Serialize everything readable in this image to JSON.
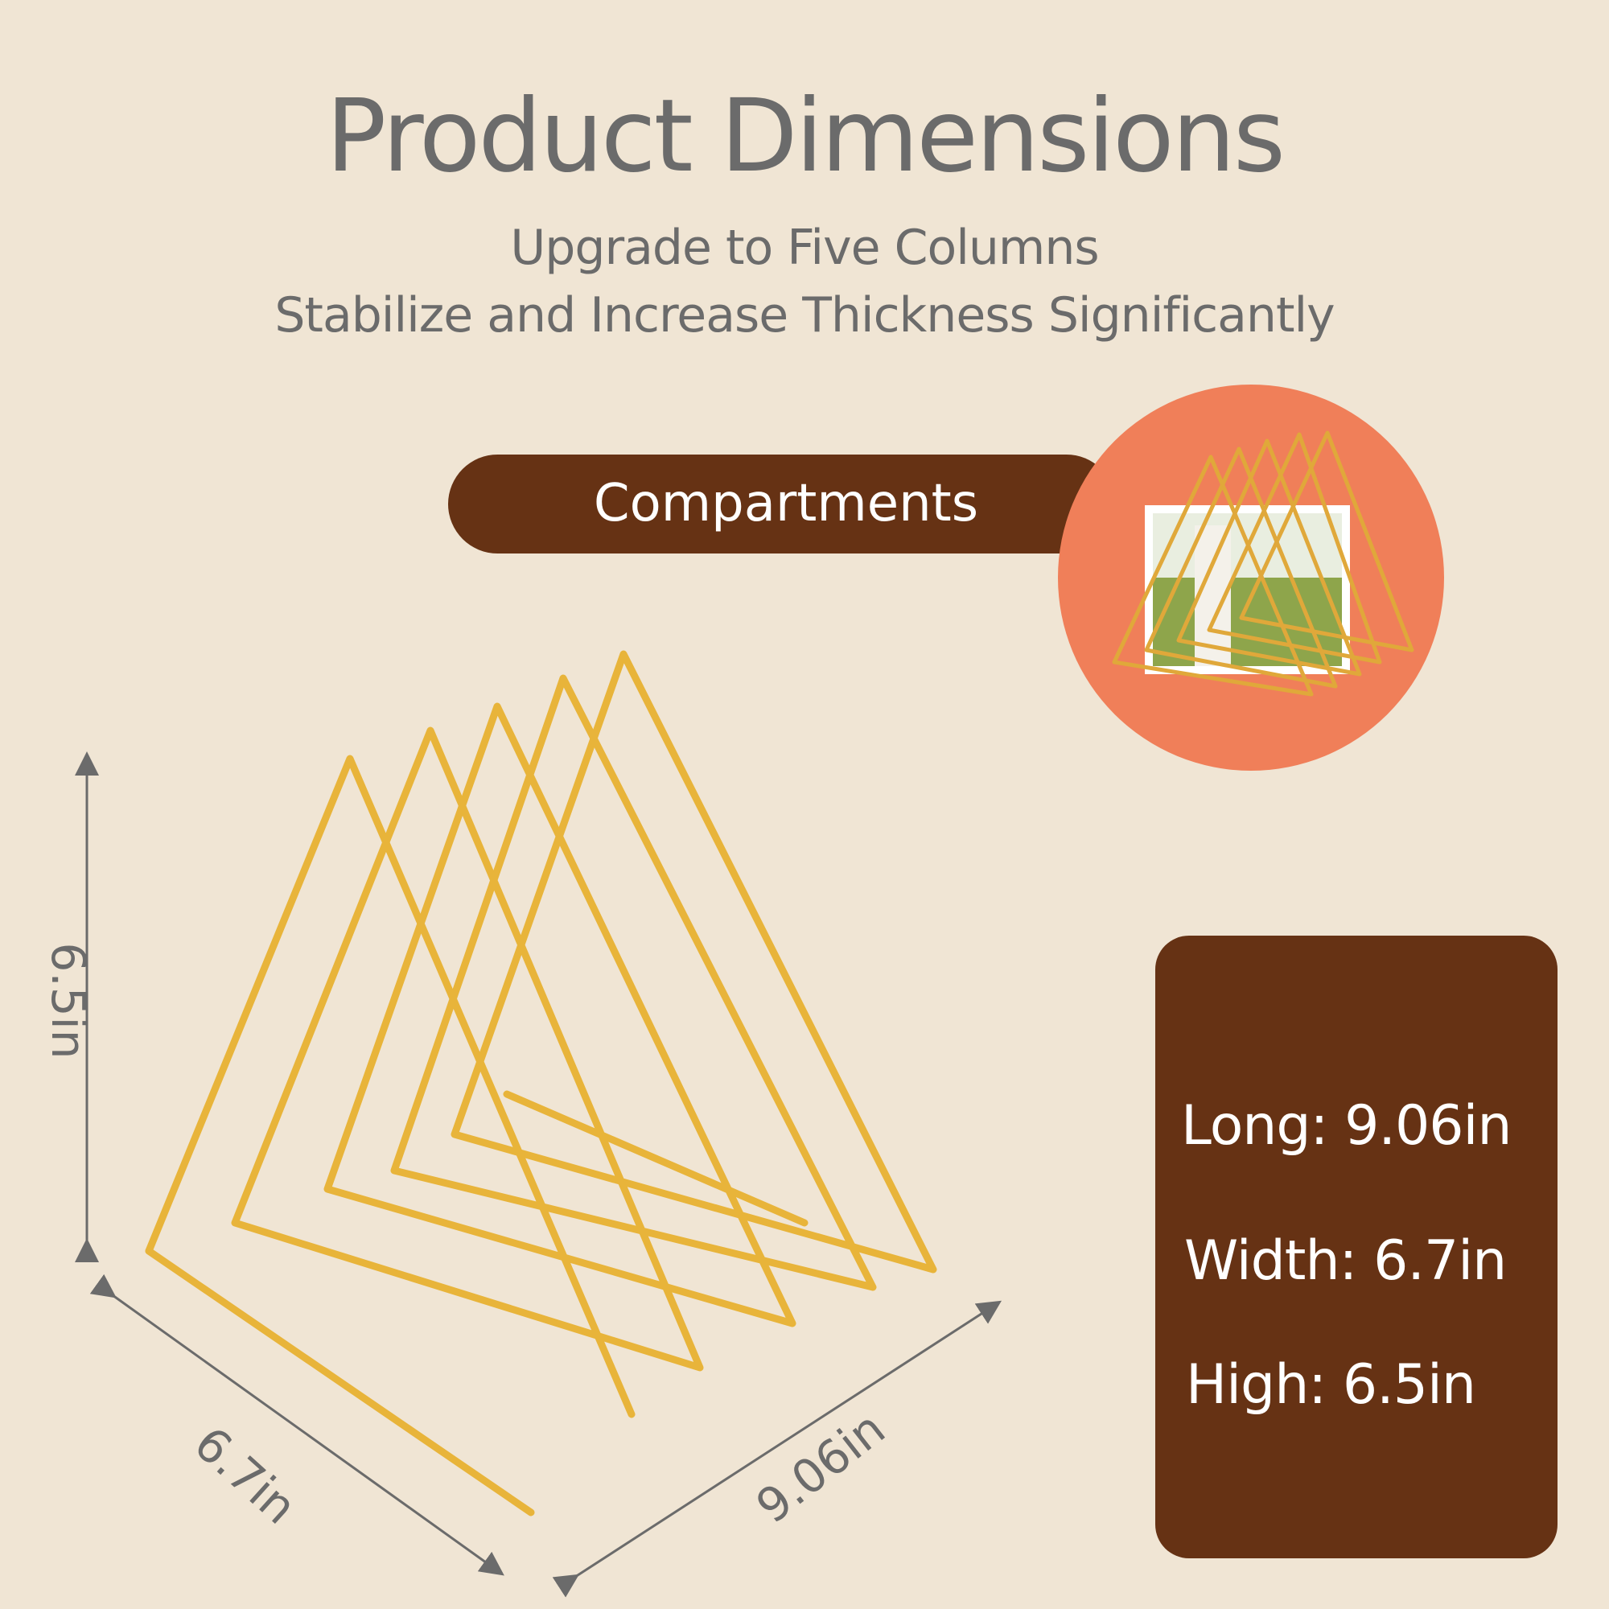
{
  "header": {
    "title": "Product Dimensions",
    "subtitle_line1": "Upgrade to Five Columns",
    "subtitle_line2": "Stabilize and Increase Thickness Significantly"
  },
  "badge": {
    "label": "Compartments"
  },
  "dimensions": {
    "height_label": "6.5in",
    "width_label": "6.7in",
    "length_label": "9.06in"
  },
  "specs": {
    "long": "Long: 9.06in",
    "width": "Width: 6.7in",
    "high": "High: 6.5in"
  },
  "colors": {
    "background": "#f0e5d4",
    "brand_brown": "#663214",
    "accent_orange": "#f07f59",
    "gold": "#e8b43a",
    "text_gray": "#6b6b6b"
  }
}
